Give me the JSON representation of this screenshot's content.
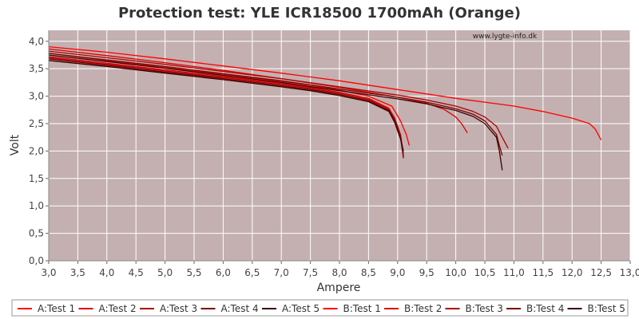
{
  "chart_data": {
    "type": "line",
    "title": "Protection test: YLE ICR18500 1700mAh (Orange)",
    "watermark": "www.lygte-info.dk",
    "xlabel": "Ampere",
    "ylabel": "Volt",
    "xlim": [
      3.0,
      13.0
    ],
    "ylim": [
      0.0,
      4.2
    ],
    "x_ticks": [
      "3,0",
      "3,5",
      "4,0",
      "4,5",
      "5,0",
      "5,5",
      "6,0",
      "6,5",
      "7,0",
      "7,5",
      "8,0",
      "8,5",
      "9,0",
      "9,5",
      "10,0",
      "10,5",
      "11,0",
      "11,5",
      "12,0",
      "12,5",
      "13,0"
    ],
    "y_ticks": [
      "0,0",
      "0,5",
      "1,0",
      "1,5",
      "2,0",
      "2,5",
      "3,0",
      "3,5",
      "4,0"
    ],
    "grid": true,
    "legend_position": "bottom",
    "plot_background": "#c4b0b0",
    "series": [
      {
        "name": "A:Test 1",
        "color": "#ff0000",
        "x": [
          3.0,
          4.0,
          5.0,
          6.0,
          7.0,
          7.5,
          8.0,
          8.5,
          8.9,
          9.05,
          9.15,
          9.2
        ],
        "y": [
          3.78,
          3.65,
          3.52,
          3.4,
          3.27,
          3.2,
          3.11,
          3.0,
          2.82,
          2.55,
          2.3,
          2.1
        ]
      },
      {
        "name": "A:Test 2",
        "color": "#dd0000",
        "x": [
          3.0,
          4.0,
          5.0,
          6.0,
          7.0,
          7.5,
          8.0,
          8.5,
          8.85,
          8.95,
          9.05,
          9.1
        ],
        "y": [
          3.72,
          3.6,
          3.48,
          3.36,
          3.23,
          3.16,
          3.07,
          2.96,
          2.78,
          2.6,
          2.3,
          1.95
        ]
      },
      {
        "name": "A:Test 3",
        "color": "#b00000",
        "x": [
          3.0,
          4.0,
          5.0,
          6.0,
          7.0,
          7.5,
          8.0,
          8.5,
          8.85,
          8.95,
          9.05,
          9.1
        ],
        "y": [
          3.7,
          3.58,
          3.46,
          3.34,
          3.21,
          3.14,
          3.05,
          2.94,
          2.76,
          2.58,
          2.3,
          1.9
        ]
      },
      {
        "name": "A:Test 4",
        "color": "#7a0000",
        "x": [
          3.0,
          4.0,
          5.0,
          6.0,
          7.0,
          7.5,
          8.0,
          8.5,
          8.85,
          8.95,
          9.05,
          9.1
        ],
        "y": [
          3.68,
          3.56,
          3.44,
          3.32,
          3.19,
          3.12,
          3.03,
          2.92,
          2.74,
          2.55,
          2.25,
          1.87
        ]
      },
      {
        "name": "A:Test 5",
        "color": "#3a0000",
        "x": [
          3.0,
          4.0,
          5.0,
          6.0,
          7.0,
          7.5,
          8.0,
          8.5,
          8.85,
          8.95,
          9.05,
          9.1
        ],
        "y": [
          3.65,
          3.54,
          3.42,
          3.3,
          3.17,
          3.1,
          3.01,
          2.9,
          2.72,
          2.52,
          2.22,
          2.0
        ]
      },
      {
        "name": "B:Test 1",
        "color": "#ff0000",
        "x": [
          3.0,
          4.0,
          5.0,
          6.0,
          7.0,
          8.0,
          9.0,
          10.0,
          11.0,
          11.5,
          12.0,
          12.3,
          12.4,
          12.5
        ],
        "y": [
          3.9,
          3.8,
          3.68,
          3.55,
          3.42,
          3.28,
          3.12,
          2.96,
          2.82,
          2.72,
          2.6,
          2.5,
          2.4,
          2.2
        ]
      },
      {
        "name": "B:Test 2",
        "color": "#dd0000",
        "x": [
          3.0,
          4.0,
          5.0,
          6.0,
          7.0,
          8.0,
          9.0,
          9.5,
          9.8,
          10.0,
          10.1,
          10.2
        ],
        "y": [
          3.86,
          3.74,
          3.61,
          3.47,
          3.32,
          3.16,
          2.98,
          2.87,
          2.76,
          2.62,
          2.5,
          2.33
        ]
      },
      {
        "name": "B:Test 3",
        "color": "#b00000",
        "x": [
          3.0,
          4.0,
          5.0,
          6.0,
          7.0,
          8.0,
          9.0,
          9.5,
          10.0,
          10.3,
          10.5,
          10.7,
          10.8,
          10.9
        ],
        "y": [
          3.82,
          3.7,
          3.58,
          3.45,
          3.32,
          3.17,
          3.02,
          2.93,
          2.82,
          2.72,
          2.62,
          2.45,
          2.25,
          2.05
        ]
      },
      {
        "name": "B:Test 4",
        "color": "#7a0000",
        "x": [
          3.0,
          4.0,
          5.0,
          6.0,
          7.0,
          8.0,
          9.0,
          9.5,
          10.0,
          10.3,
          10.5,
          10.7,
          10.75,
          10.8
        ],
        "y": [
          3.78,
          3.66,
          3.54,
          3.41,
          3.28,
          3.13,
          2.98,
          2.89,
          2.77,
          2.67,
          2.55,
          2.3,
          2.1,
          1.92
        ]
      },
      {
        "name": "B:Test 5",
        "color": "#3a0000",
        "x": [
          3.0,
          4.0,
          5.0,
          6.0,
          7.0,
          8.0,
          9.0,
          9.5,
          10.0,
          10.3,
          10.5,
          10.7,
          10.75,
          10.8
        ],
        "y": [
          3.75,
          3.63,
          3.51,
          3.38,
          3.25,
          3.1,
          2.95,
          2.86,
          2.74,
          2.63,
          2.5,
          2.25,
          2.0,
          1.65
        ]
      }
    ]
  }
}
